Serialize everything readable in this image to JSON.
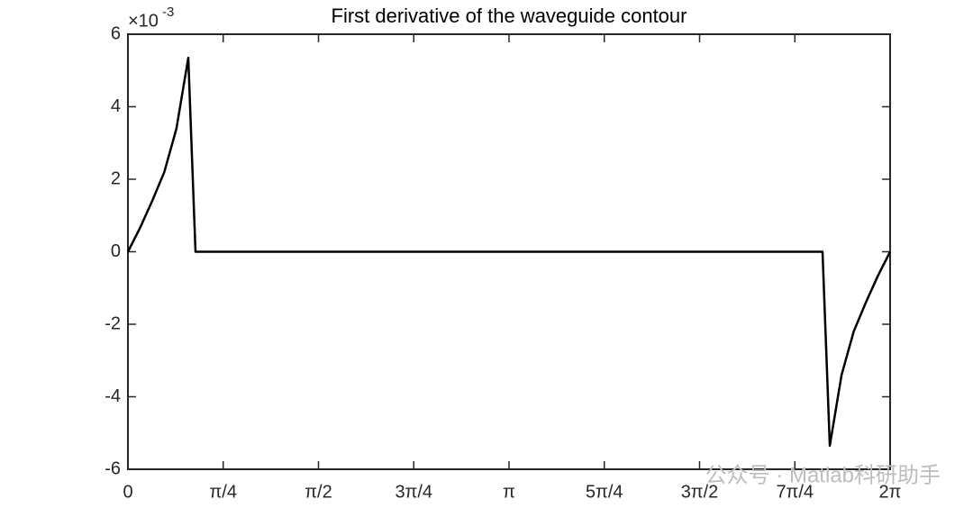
{
  "chart_data": {
    "type": "line",
    "title": "First derivative of the waveguide contour",
    "y_multiplier": {
      "base": "×10",
      "exponent": "-3"
    },
    "x": [
      0,
      0.1,
      0.2,
      0.3,
      0.4,
      0.4976,
      0.557,
      5.726,
      5.786,
      5.883,
      5.983,
      6.083,
      6.183,
      6.2832
    ],
    "series": [
      {
        "color": "#000000",
        "values": [
          0,
          0.66,
          1.4,
          2.2,
          3.4,
          5.35,
          0,
          0,
          -5.35,
          -3.4,
          -2.2,
          -1.4,
          -0.66,
          0
        ]
      }
    ],
    "xlim": [
      0,
      6.2832
    ],
    "ylim": [
      -6,
      6
    ],
    "xticks": [
      0,
      {
        "value": 0.7854,
        "label": "π/4"
      },
      {
        "value": 1.5708,
        "label": "π/2"
      },
      {
        "value": 2.3562,
        "label": "3π/4"
      },
      {
        "value": 3.1416,
        "label": "π"
      },
      {
        "value": 3.927,
        "label": "5π/4"
      },
      {
        "value": 4.7124,
        "label": "3π/2"
      },
      {
        "value": 5.4978,
        "label": "7π/4"
      },
      {
        "value": 6.2832,
        "label": "2π"
      }
    ],
    "yticks": [
      -6,
      -4,
      -2,
      0,
      2,
      4,
      6
    ],
    "grid": false,
    "watermark": "公众号 · Matlab科研助手"
  }
}
